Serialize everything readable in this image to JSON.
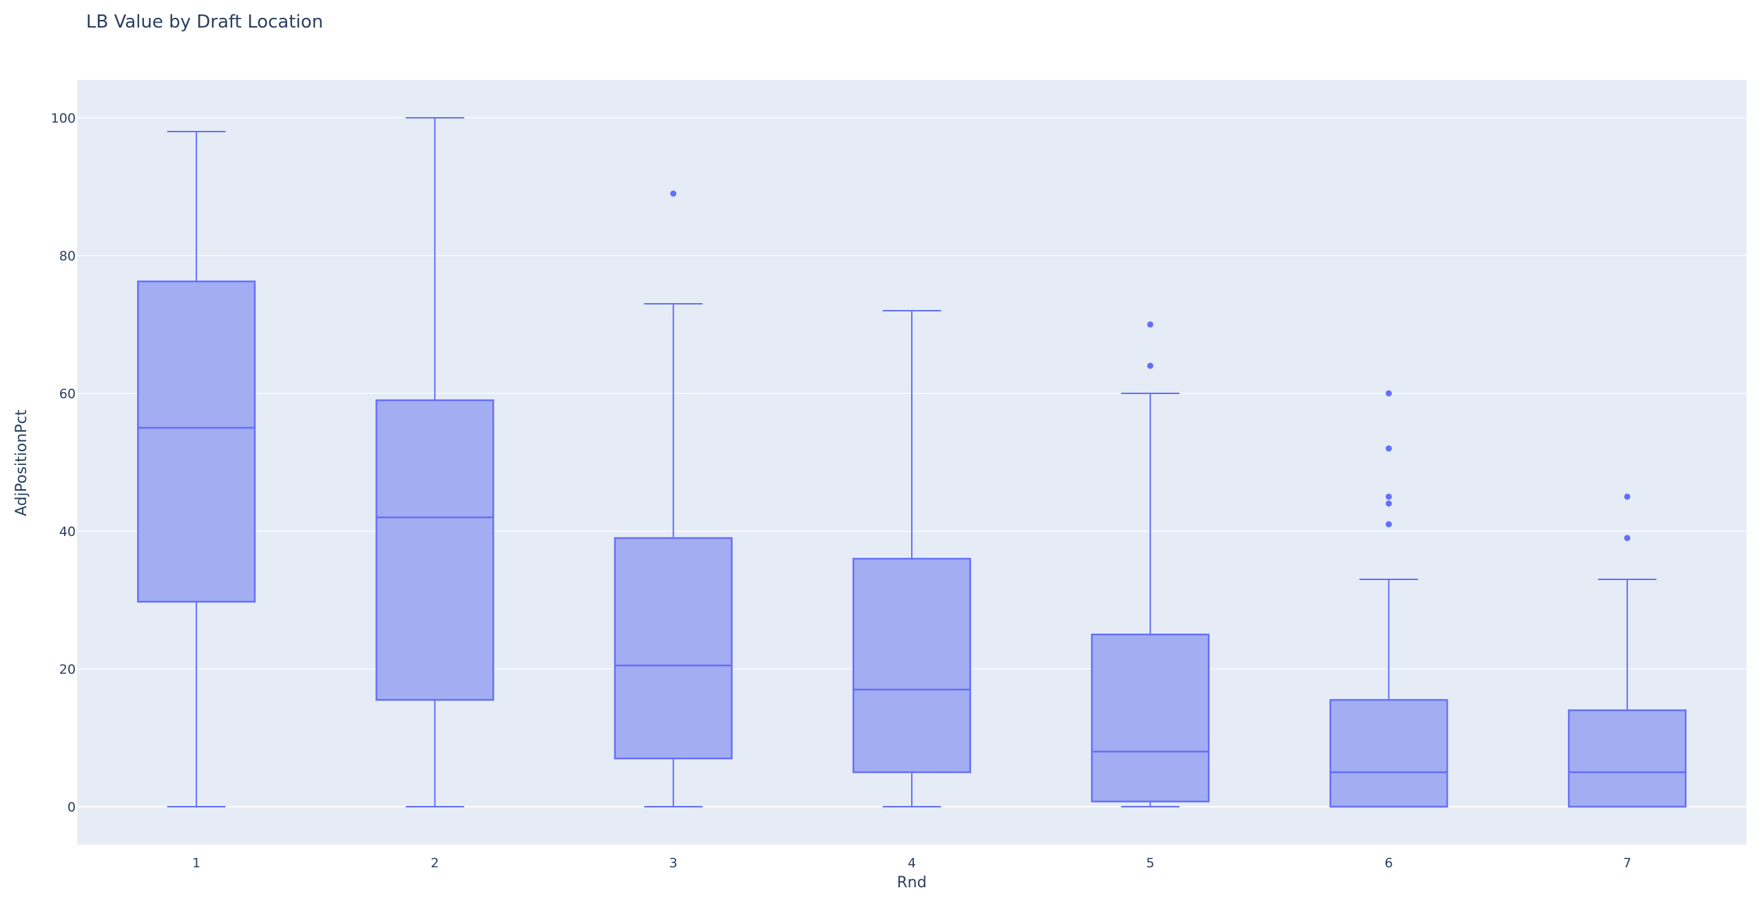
{
  "chart_data": {
    "type": "box",
    "title": "LB Value by Draft Location",
    "xlabel": "Rnd",
    "ylabel": "AdjPositionPct",
    "categories": [
      "1",
      "2",
      "3",
      "4",
      "5",
      "6",
      "7"
    ],
    "yticks": [
      0,
      20,
      40,
      60,
      80,
      100
    ],
    "ylim": [
      -5.5,
      105.5
    ],
    "grid": true,
    "legend": "none",
    "colors": {
      "plot_background": "#e5ecf6",
      "gridline": "#ffffff",
      "box_fill": "#a3adf1",
      "box_line": "#636efa",
      "text": "#2a3f5f"
    },
    "boxes": [
      {
        "category": "1",
        "lower_whisker": 0,
        "q1": 29.75,
        "median": 55,
        "q3": 76.25,
        "upper_whisker": 98,
        "outliers": []
      },
      {
        "category": "2",
        "lower_whisker": 0,
        "q1": 15.5,
        "median": 42,
        "q3": 59,
        "upper_whisker": 100,
        "outliers": []
      },
      {
        "category": "3",
        "lower_whisker": 0,
        "q1": 7,
        "median": 20.5,
        "q3": 39,
        "upper_whisker": 73,
        "outliers": [
          89
        ]
      },
      {
        "category": "4",
        "lower_whisker": 0,
        "q1": 5,
        "median": 17,
        "q3": 36,
        "upper_whisker": 72,
        "outliers": []
      },
      {
        "category": "5",
        "lower_whisker": 0,
        "q1": 0.75,
        "median": 8,
        "q3": 25,
        "upper_whisker": 60,
        "outliers": [
          64,
          70
        ]
      },
      {
        "category": "6",
        "lower_whisker": 0,
        "q1": 0,
        "median": 5,
        "q3": 15.5,
        "upper_whisker": 33,
        "outliers": [
          41,
          44,
          45,
          52,
          60
        ]
      },
      {
        "category": "7",
        "lower_whisker": 0,
        "q1": 0,
        "median": 5,
        "q3": 14,
        "upper_whisker": 33,
        "outliers": [
          39,
          45
        ]
      }
    ]
  }
}
